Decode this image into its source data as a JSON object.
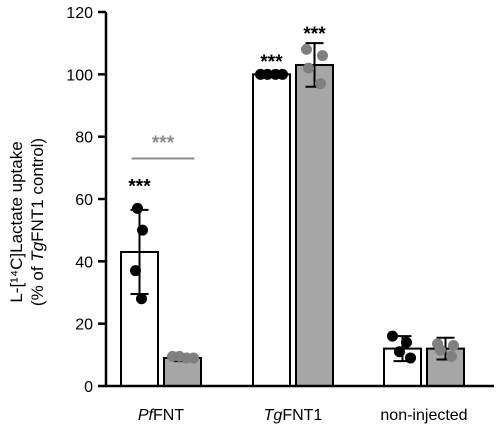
{
  "chart_data": {
    "type": "bar",
    "ylabel_line1": "L-[¹⁴C]Lactate uptake",
    "ylabel_line2_prefix": "(% of ",
    "ylabel_line2_italic": "Tg",
    "ylabel_line2_suffix": "FNT1 control)",
    "ylim": [
      0,
      120
    ],
    "yticks": [
      0,
      20,
      40,
      60,
      80,
      100,
      120
    ],
    "categories": [
      {
        "italic": "Pf",
        "text": "FNT"
      },
      {
        "italic": "Tg",
        "text": "FNT1"
      },
      {
        "italic": "",
        "text": "non-injected"
      }
    ],
    "series": [
      {
        "fill": "#ffffff",
        "dot_color": "#000000",
        "values": [
          43,
          100,
          12
        ],
        "errors": [
          13.5,
          0,
          4
        ],
        "points": [
          [
            57,
            50,
            37,
            28
          ],
          [
            100,
            100,
            100,
            100
          ],
          [
            16,
            14,
            11,
            9
          ]
        ]
      },
      {
        "fill": "#a6a6a6",
        "dot_color": "#808080",
        "values": [
          9,
          103,
          12
        ],
        "errors": [
          1,
          7,
          3.5
        ],
        "points": [
          [
            9.5,
            9.5,
            9,
            9
          ],
          [
            108,
            106,
            102,
            97
          ],
          [
            13.5,
            13,
            11.5,
            9.5
          ]
        ]
      }
    ],
    "annotations": [
      {
        "text": "***",
        "category": 0,
        "series": 0,
        "y": 64,
        "color": "#000000"
      },
      {
        "text": "***",
        "category": 1,
        "series": 0,
        "y": 104,
        "color": "#000000"
      },
      {
        "text": "***",
        "category": 1,
        "series": 1,
        "y": 113,
        "color": "#000000"
      },
      {
        "text": "***",
        "category": 0,
        "series": "both",
        "y": 78,
        "color": "#8c8c8c",
        "bracket_y": 73
      }
    ]
  }
}
